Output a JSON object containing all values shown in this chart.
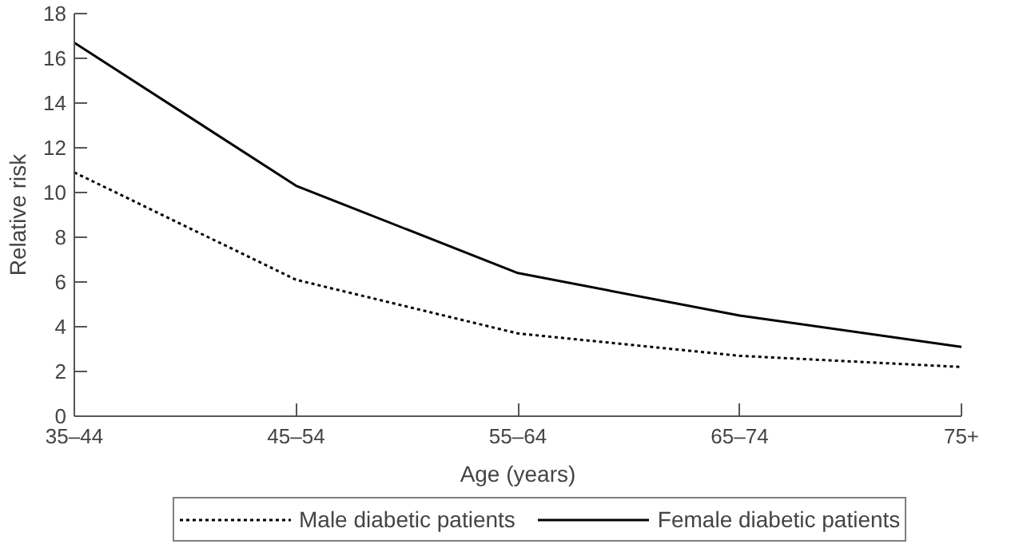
{
  "chart_data": {
    "type": "line",
    "xlabel": "Age (years)",
    "ylabel": "Relative risk",
    "categories": [
      "35–44",
      "45–54",
      "55–64",
      "65–74",
      "75+"
    ],
    "series": [
      {
        "name": "Male diabetic patients",
        "color": "#000000",
        "values": [
          10.9,
          6.1,
          3.7,
          2.7,
          2.2
        ],
        "line_style": "dotted"
      },
      {
        "name": "Female diabetic patients",
        "color": "#000000",
        "values": [
          16.7,
          10.3,
          6.4,
          4.5,
          3.1
        ],
        "line_style": "solid"
      }
    ],
    "ylim": [
      0,
      18
    ],
    "yticks": [
      0,
      2,
      4,
      6,
      8,
      10,
      12,
      14,
      16,
      18
    ],
    "grid": false,
    "legend": "bottom",
    "marker": "none"
  }
}
